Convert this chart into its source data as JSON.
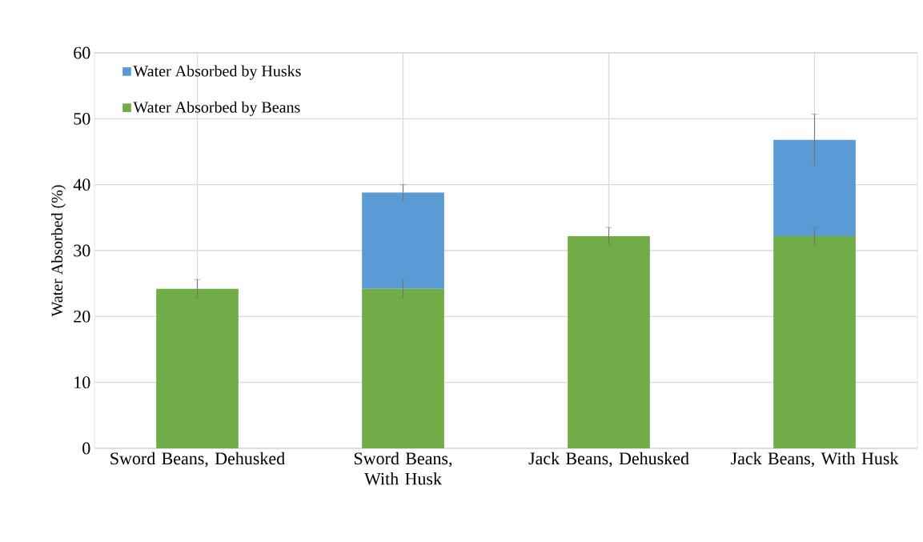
{
  "chart_data": {
    "type": "bar",
    "stacked": true,
    "ylabel": "Water Absorbed (%)",
    "categories": [
      "Sword Beans, Dehusked",
      "Sword Beans, With Husk",
      "Jack Beans, Dehusked",
      "Jack Beans, With Husk"
    ],
    "series": [
      {
        "name": "Water Absorbed by Beans",
        "color": "#70ad47",
        "values": [
          24.2,
          24.2,
          32.2,
          32.2
        ],
        "errors": [
          1.4,
          1.4,
          1.3,
          1.3
        ]
      },
      {
        "name": "Water Absorbed by Husks",
        "color": "#5b9bd5",
        "values": [
          null,
          14.6,
          null,
          14.6
        ],
        "errors": [
          null,
          1.2,
          null,
          3.9
        ]
      }
    ],
    "ylim": [
      0,
      60
    ],
    "yticks": [
      0,
      10,
      20,
      30,
      40,
      50,
      60
    ],
    "grid": true,
    "legend": "top left"
  }
}
